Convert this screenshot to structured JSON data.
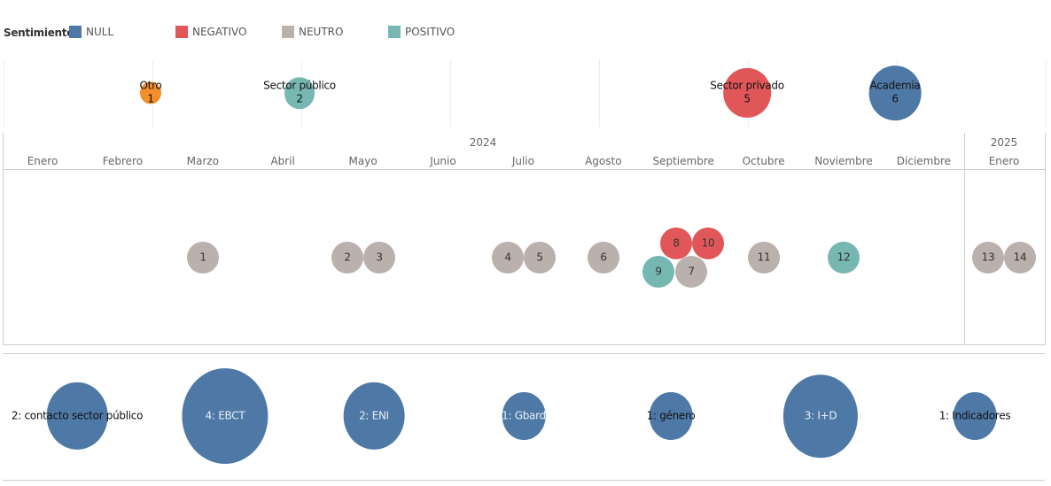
{
  "legend": {
    "title": "Sentimiento",
    "items": [
      {
        "label": "NULL",
        "color": "#4e79a7"
      },
      {
        "label": "NEGATIVO",
        "color": "#e15759"
      },
      {
        "label": "NEUTRO",
        "color": "#bab0ac"
      },
      {
        "label": "POSITIVO",
        "color": "#76b7b2"
      }
    ]
  },
  "chart_data": [
    {
      "type": "bubble",
      "points": [
        {
          "label": "Otro",
          "value": 1,
          "color": "#f28e2b"
        },
        {
          "label": "Sector público",
          "value": 2,
          "color": "#76b7b2"
        },
        {
          "label": "Sector privado",
          "value": 5,
          "color": "#e15759"
        },
        {
          "label": "Academia",
          "value": 6,
          "color": "#4e79a7"
        }
      ]
    },
    {
      "type": "scatter",
      "years": [
        {
          "label": "2024"
        },
        {
          "label": "2025"
        }
      ],
      "months_2024": [
        "Enero",
        "Febrero",
        "Marzo",
        "Abril",
        "Mayo",
        "Junio",
        "Julio",
        "Agosto",
        "Septiembre",
        "Octubre",
        "Noviembre",
        "Diciembre"
      ],
      "months_2025": [
        "Enero"
      ],
      "points": [
        {
          "id": "1",
          "year": 2024,
          "month": 3,
          "sentiment": "NEUTRO"
        },
        {
          "id": "2",
          "year": 2024,
          "month": 5,
          "sentiment": "NEUTRO"
        },
        {
          "id": "3",
          "year": 2024,
          "month": 5,
          "sentiment": "NEUTRO"
        },
        {
          "id": "4",
          "year": 2024,
          "month": 7,
          "sentiment": "NEUTRO"
        },
        {
          "id": "5",
          "year": 2024,
          "month": 7,
          "sentiment": "NEUTRO"
        },
        {
          "id": "6",
          "year": 2024,
          "month": 8,
          "sentiment": "NEUTRO"
        },
        {
          "id": "7",
          "year": 2024,
          "month": 9,
          "sentiment": "NEUTRO"
        },
        {
          "id": "8",
          "year": 2024,
          "month": 9,
          "sentiment": "NEGATIVO"
        },
        {
          "id": "9",
          "year": 2024,
          "month": 9,
          "sentiment": "POSITIVO"
        },
        {
          "id": "10",
          "year": 2024,
          "month": 9,
          "sentiment": "NEGATIVO"
        },
        {
          "id": "11",
          "year": 2024,
          "month": 10,
          "sentiment": "NEUTRO"
        },
        {
          "id": "12",
          "year": 2024,
          "month": 11,
          "sentiment": "POSITIVO"
        },
        {
          "id": "13",
          "year": 2025,
          "month": 1,
          "sentiment": "NEUTRO"
        },
        {
          "id": "14",
          "year": 2025,
          "month": 1,
          "sentiment": "NEUTRO"
        }
      ]
    },
    {
      "type": "bubble",
      "color": "#4e79a7",
      "points": [
        {
          "label": "2: contacto sector público",
          "value": 2
        },
        {
          "label": "4: EBCT",
          "value": 4
        },
        {
          "label": "2: ENI",
          "value": 2
        },
        {
          "label": "1: Gbard",
          "value": 1
        },
        {
          "label": "1: género",
          "value": 1
        },
        {
          "label": "3: I+D",
          "value": 3
        },
        {
          "label": "1: Indicadores",
          "value": 1
        }
      ]
    }
  ]
}
